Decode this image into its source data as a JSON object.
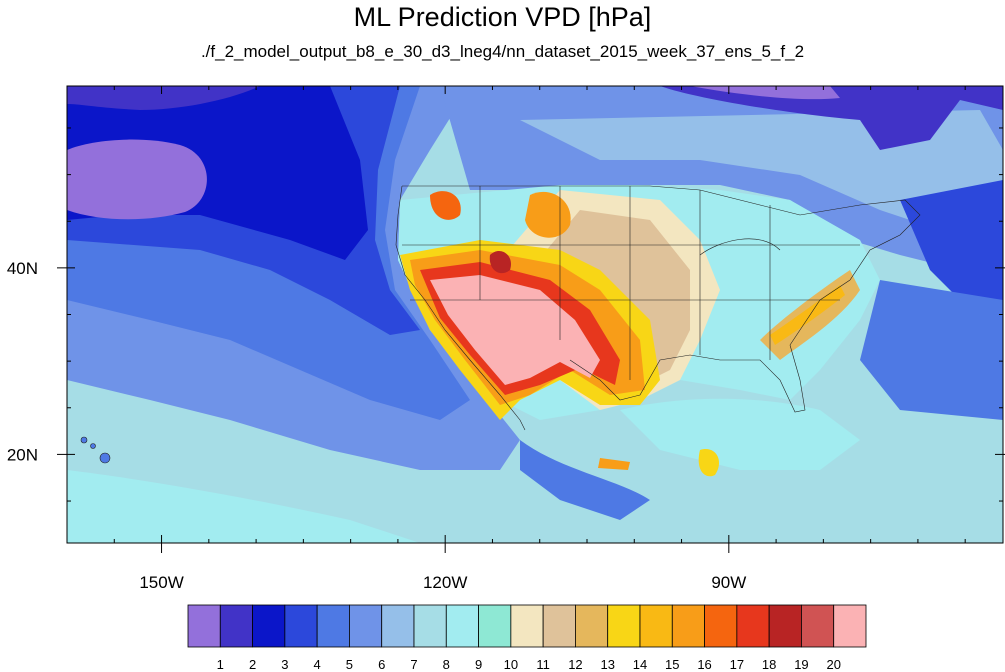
{
  "title": "ML Prediction VPD [hPa]",
  "subtitle": "./f_2_model_output_b8_e_30_d3_lneg4/nn_dataset_2015_week_37_ens_5_f_2",
  "map": {
    "lon_range": [
      -160,
      -61
    ],
    "lat_range": [
      10.5,
      59.5
    ],
    "lon_ticks": [
      {
        "value": -150,
        "label": "150W"
      },
      {
        "value": -120,
        "label": "120W"
      },
      {
        "value": -90,
        "label": "90W"
      }
    ],
    "lat_ticks": [
      {
        "value": 40,
        "label": "40N"
      },
      {
        "value": 20,
        "label": "20N"
      }
    ],
    "units": "hPa"
  },
  "colorbar": {
    "colors": [
      "#9370db",
      "#4133c7",
      "#0b16c9",
      "#2c48db",
      "#4e79e4",
      "#6f93e8",
      "#95bfe9",
      "#a6dde6",
      "#a2ecf0",
      "#8ee8d4",
      "#f3e6c0",
      "#dfc29a",
      "#e5b75c",
      "#f8d616",
      "#f9b914",
      "#f89d18",
      "#f5650f",
      "#e7371d",
      "#b82424",
      "#d05353",
      "#fbb2b4"
    ],
    "labels": [
      "1",
      "2",
      "3",
      "4",
      "5",
      "6",
      "7",
      "8",
      "9",
      "10",
      "11",
      "12",
      "13",
      "14",
      "15",
      "16",
      "17",
      "18",
      "19",
      "20"
    ]
  }
}
